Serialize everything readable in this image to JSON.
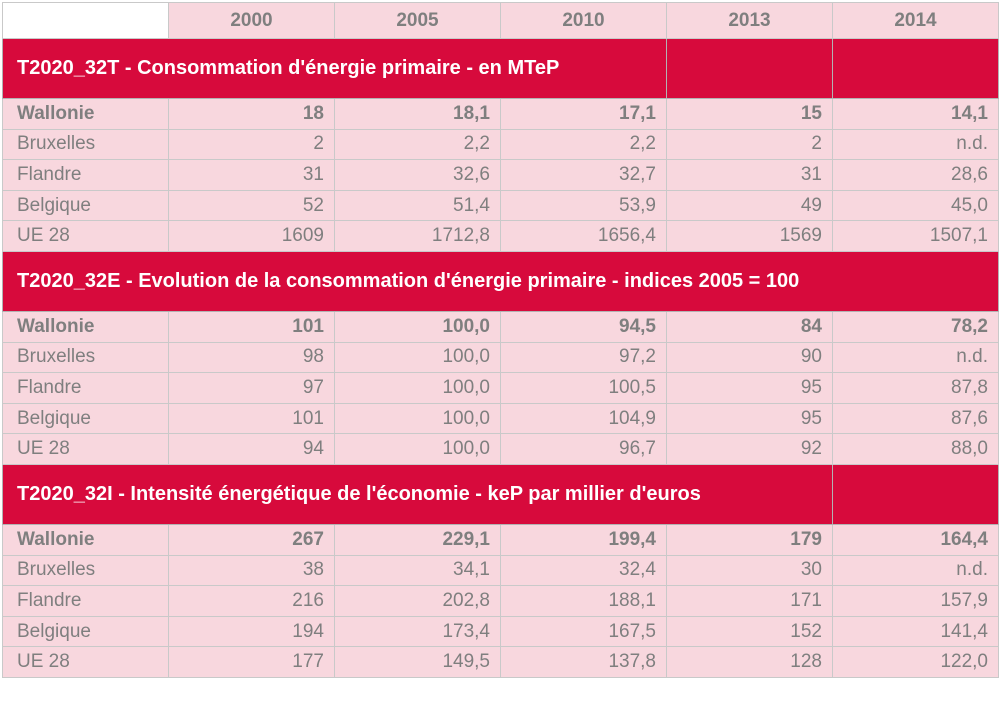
{
  "header": {
    "years": [
      "2000",
      "2005",
      "2010",
      "2013",
      "2014"
    ]
  },
  "sections": [
    {
      "title": "T2020_32T - Consommation d'énergie primaire - en MTeP",
      "rows": [
        {
          "region": "Wallonie",
          "values": [
            "18",
            "18,1",
            "17,1",
            "15",
            "14,1"
          ]
        },
        {
          "region": "Bruxelles",
          "values": [
            "2",
            "2,2",
            "2,2",
            "2",
            "n.d."
          ]
        },
        {
          "region": "Flandre",
          "values": [
            "31",
            "32,6",
            "32,7",
            "31",
            "28,6"
          ]
        },
        {
          "region": "Belgique",
          "values": [
            "52",
            "51,4",
            "53,9",
            "49",
            "45,0"
          ]
        },
        {
          "region": "UE 28",
          "values": [
            "1609",
            "1712,8",
            "1656,4",
            "1569",
            "1507,1"
          ]
        }
      ]
    },
    {
      "title": "T2020_32E - Evolution de la consommation d'énergie primaire - indices 2005 = 100",
      "rows": [
        {
          "region": "Wallonie",
          "values": [
            "101",
            "100,0",
            "94,5",
            "84",
            "78,2"
          ]
        },
        {
          "region": "Bruxelles",
          "values": [
            "98",
            "100,0",
            "97,2",
            "90",
            "n.d."
          ]
        },
        {
          "region": "Flandre",
          "values": [
            "97",
            "100,0",
            "100,5",
            "95",
            "87,8"
          ]
        },
        {
          "region": "Belgique",
          "values": [
            "101",
            "100,0",
            "104,9",
            "95",
            "87,6"
          ]
        },
        {
          "region": "UE 28",
          "values": [
            "94",
            "100,0",
            "96,7",
            "92",
            "88,0"
          ]
        }
      ]
    },
    {
      "title": "T2020_32I - Intensité énergétique de l'économie - keP par millier d'euros",
      "rows": [
        {
          "region": "Wallonie",
          "values": [
            "267",
            "229,1",
            "199,4",
            "179",
            "164,4"
          ]
        },
        {
          "region": "Bruxelles",
          "values": [
            "38",
            "34,1",
            "32,4",
            "30",
            "n.d."
          ]
        },
        {
          "region": "Flandre",
          "values": [
            "216",
            "202,8",
            "188,1",
            "171",
            "157,9"
          ]
        },
        {
          "region": "Belgique",
          "values": [
            "194",
            "173,4",
            "167,5",
            "152",
            "141,4"
          ]
        },
        {
          "region": "UE 28",
          "values": [
            "177",
            "149,5",
            "137,8",
            "128",
            "122,0"
          ]
        }
      ]
    }
  ]
}
